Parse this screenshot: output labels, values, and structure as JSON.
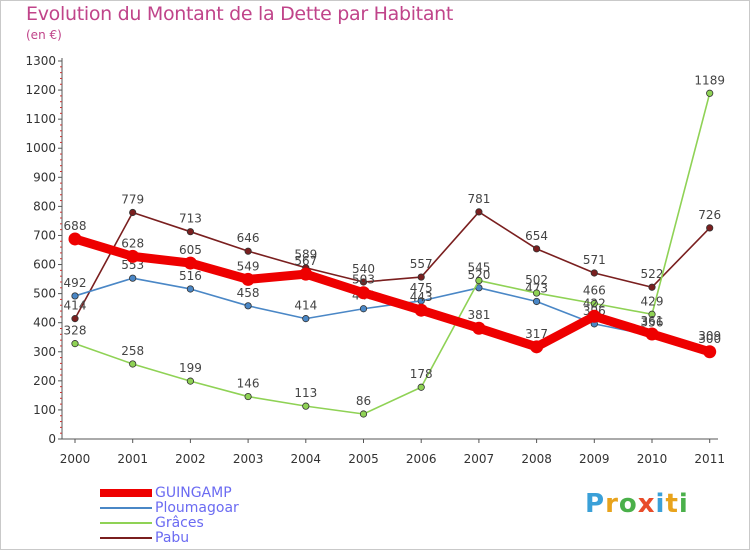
{
  "chart_data": {
    "type": "line",
    "title": "Evolution du Montant de la Dette par Habitant",
    "ylabel": "(en €)",
    "xlabel": "",
    "ylim": [
      0,
      1300
    ],
    "yticks": [
      0,
      100,
      200,
      300,
      400,
      500,
      600,
      700,
      800,
      900,
      1000,
      1100,
      1200,
      1300
    ],
    "categories": [
      "2000",
      "2001",
      "2002",
      "2003",
      "2004",
      "2005",
      "2006",
      "2007",
      "2008",
      "2009",
      "2010",
      "2011"
    ],
    "series": [
      {
        "name": "Pabu",
        "color": "#7a1f1f",
        "values": [
          414,
          779,
          713,
          646,
          589,
          540,
          557,
          781,
          654,
          571,
          522,
          726
        ],
        "labels": [
          "414",
          "779",
          "713",
          "646",
          "589",
          "540",
          "557",
          "781",
          "654",
          "571",
          "522",
          "726"
        ]
      },
      {
        "name": "Ploumagoar",
        "color": "#4a87c6",
        "values": [
          492,
          553,
          516,
          458,
          414,
          448,
          475,
          520,
          473,
          396,
          356,
          309
        ],
        "labels": [
          "492",
          "553",
          "516",
          "458",
          "414",
          "448",
          "475",
          "520",
          "473",
          "396",
          "356",
          "309"
        ]
      },
      {
        "name": "Grâces",
        "color": "#8fd255",
        "values": [
          328,
          258,
          199,
          146,
          113,
          86,
          178,
          545,
          502,
          466,
          429,
          1189
        ],
        "labels": [
          "328",
          "258",
          "199",
          "146",
          "113",
          "86",
          "178",
          "545",
          "502",
          "466",
          "429",
          "1189"
        ]
      },
      {
        "name": "GUINGAMP",
        "color": "#ee0000",
        "values": [
          688,
          628,
          605,
          549,
          567,
          503,
          443,
          381,
          317,
          422,
          361,
          300
        ],
        "labels": [
          "688",
          "628",
          "605",
          "549",
          "567",
          "503",
          "443",
          "381",
          "317",
          "422",
          "361",
          "300"
        ]
      }
    ],
    "legend": [
      "GUINGAMP",
      "Ploumagoar",
      "Grâces",
      "Pabu"
    ],
    "legend_position": "bottom-left",
    "grid": false
  },
  "logo": {
    "letters": [
      "P",
      "r",
      "o",
      "x",
      "i",
      "t",
      "i"
    ],
    "colors": [
      "#3aa0d8",
      "#e8a31c",
      "#4ab04a",
      "#e84c2a",
      "#3aa0d8",
      "#e8a31c",
      "#4ab04a"
    ]
  }
}
